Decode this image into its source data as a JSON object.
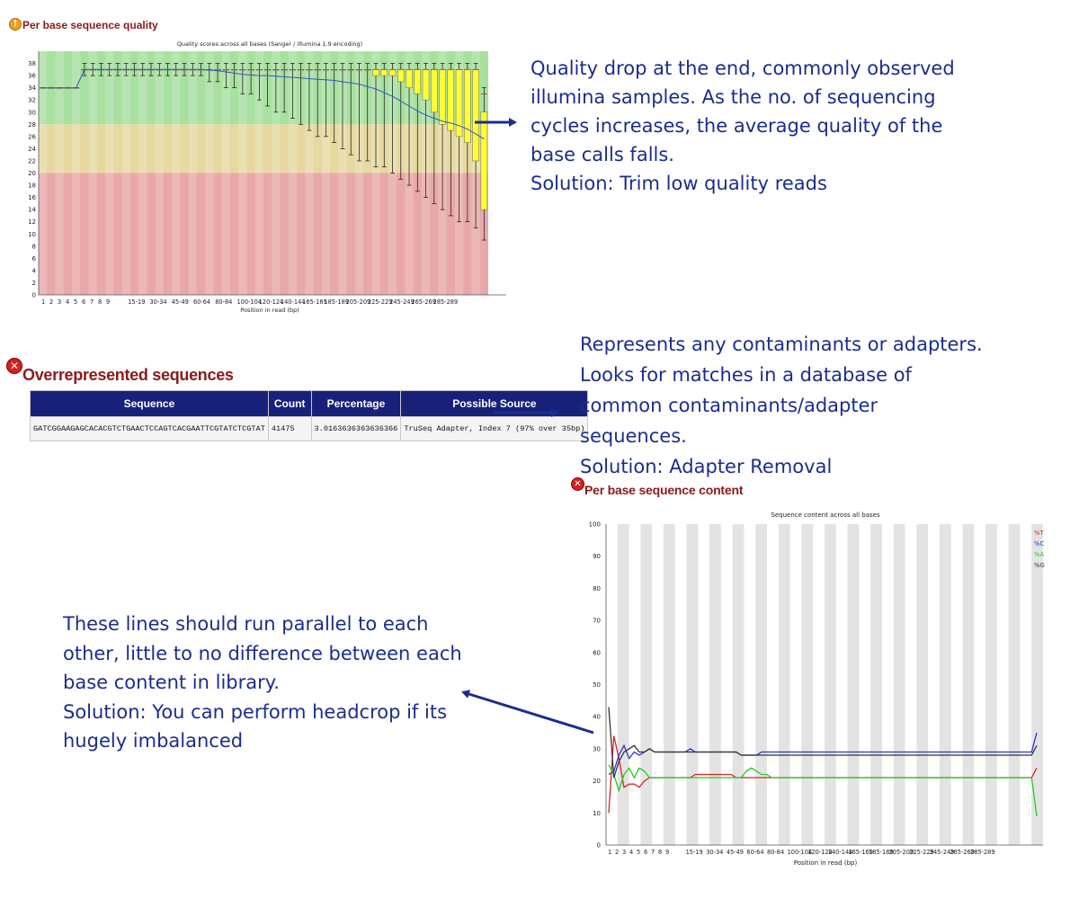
{
  "sections": {
    "quality": {
      "title": "Per base sequence quality",
      "icon": "warning-icon"
    },
    "overrep": {
      "title": "Overrepresented sequences",
      "icon": "fail-icon"
    },
    "content": {
      "title": "Per base sequence content",
      "icon": "fail-icon"
    }
  },
  "notes": {
    "quality": [
      "Quality drop at the end, commonly observed",
      "illumina samples. As the no. of sequencing",
      "cycles increases, the average quality of the",
      "base calls falls.",
      "Solution: Trim low quality reads"
    ],
    "overrep": [
      "Represents any contaminants or adapters.",
      "Looks for matches in a database of",
      "common contaminants/adapter",
      "sequences.",
      "Solution: Adapter Removal"
    ],
    "content": [
      "These lines should run parallel to each",
      "other, little to no difference between each",
      "base content in library.",
      "Solution: You can perform headcrop if its",
      "hugely imbalanced"
    ]
  },
  "overrep_table": {
    "headers": [
      "Sequence",
      "Count",
      "Percentage",
      "Possible Source"
    ],
    "rows": [
      [
        "GATCGGAAGAGCACACGTCTGAACTCCAGTCACGAATTCGTATCTCGTAT",
        "41475",
        "3.0163636363636366",
        "TruSeq Adapter, Index 7 (97% over 35bp)"
      ]
    ]
  },
  "colors": {
    "annotation": "#1a2d8f",
    "good": "#a8e0a0",
    "warn": "#e6d8a0",
    "bad": "#e8a8a8",
    "box": "#ffff33",
    "mean": "#3355cc",
    "header": "#17217a"
  },
  "chart_data": [
    {
      "type": "box",
      "title": "Quality scores across all bases (Sanger / Illumina 1.9 encoding)",
      "xlabel": "Position in read (bp)",
      "ylabel": "",
      "ylim": [
        0,
        40
      ],
      "yticks": [
        0,
        2,
        4,
        6,
        8,
        10,
        12,
        14,
        16,
        18,
        20,
        22,
        24,
        26,
        28,
        30,
        32,
        34,
        36,
        38
      ],
      "x_tick_labels": [
        "1",
        "2",
        "3",
        "4",
        "5",
        "6",
        "7",
        "8",
        "9",
        "15-19",
        "30-34",
        "45-49",
        "60-64",
        "80-84",
        "100-104",
        "120-124",
        "140-144",
        "165-169",
        "185-189",
        "205-209",
        "225-229",
        "245-249",
        "265-269",
        "285-289"
      ],
      "zones": [
        {
          "from": 28,
          "to": 40,
          "label": "good"
        },
        {
          "from": 20,
          "to": 28,
          "label": "warn"
        },
        {
          "from": 0,
          "to": 20,
          "label": "bad"
        }
      ],
      "mean": [
        34,
        34,
        34,
        34,
        34,
        37,
        37,
        37,
        37,
        37,
        37,
        37,
        37,
        37,
        37,
        37,
        37,
        37,
        37,
        37,
        36.9,
        36.8,
        36.6,
        36.4,
        36.2,
        36.1,
        36,
        36,
        35.9,
        35.8,
        35.7,
        35.6,
        35.5,
        35.4,
        35.3,
        35.2,
        35,
        34.8,
        34.6,
        34.2,
        33.8,
        33.2,
        32.6,
        31.8,
        31,
        30.2,
        29.5,
        29,
        28.5,
        28.2,
        27.8,
        27.2,
        26.4,
        25.6
      ],
      "median": [
        34,
        34,
        34,
        34,
        34,
        37,
        37,
        37,
        37,
        37,
        37,
        37,
        37,
        37,
        37,
        37,
        37,
        37,
        37,
        37,
        37,
        37,
        37,
        37,
        37,
        37,
        37,
        37,
        37,
        37,
        37,
        37,
        37,
        37,
        37,
        37,
        37,
        37,
        37,
        37,
        37,
        37,
        37,
        37,
        37,
        37,
        37,
        37,
        37,
        37,
        37,
        37,
        37,
        33
      ],
      "q1": [
        34,
        34,
        34,
        34,
        34,
        37,
        37,
        37,
        37,
        37,
        37,
        37,
        37,
        37,
        37,
        37,
        37,
        37,
        37,
        37,
        37,
        37,
        37,
        37,
        37,
        37,
        37,
        37,
        37,
        37,
        37,
        37,
        37,
        37,
        37,
        37,
        37,
        37,
        37,
        37,
        36,
        36,
        36,
        35,
        34,
        33,
        32,
        30,
        28,
        27,
        26,
        25,
        22,
        14
      ],
      "q3": [
        34,
        34,
        34,
        34,
        34,
        37,
        37,
        37,
        37,
        37,
        37,
        37,
        37,
        37,
        37,
        37,
        37,
        37,
        37,
        37,
        37,
        37,
        37,
        37,
        37,
        37,
        37,
        37,
        37,
        37,
        37,
        37,
        37,
        37,
        37,
        37,
        37,
        37,
        37,
        37,
        37,
        37,
        37,
        37,
        37,
        37,
        37,
        37,
        37,
        37,
        37,
        37,
        37,
        30
      ],
      "whisker_low": [
        34,
        34,
        34,
        34,
        34,
        36,
        36,
        36,
        36,
        36,
        36,
        36,
        36,
        36,
        36,
        36,
        36,
        36,
        36,
        36,
        35,
        35,
        34,
        34,
        33,
        33,
        32,
        31,
        30,
        30,
        29,
        28,
        27,
        26,
        26,
        25,
        24,
        23,
        22,
        22,
        21,
        21,
        20,
        19,
        18,
        17,
        16,
        15,
        14,
        13,
        12,
        12,
        11,
        9
      ],
      "whisker_high": [
        34,
        34,
        34,
        34,
        34,
        38,
        38,
        38,
        38,
        38,
        38,
        38,
        38,
        38,
        38,
        38,
        38,
        38,
        38,
        38,
        38,
        38,
        38,
        38,
        38,
        38,
        38,
        38,
        38,
        38,
        38,
        38,
        38,
        38,
        38,
        38,
        38,
        38,
        38,
        38,
        38,
        38,
        38,
        38,
        38,
        38,
        38,
        38,
        38,
        38,
        38,
        38,
        38,
        34
      ]
    },
    {
      "type": "line",
      "title": "Sequence content across all bases",
      "xlabel": "Position in read (bp)",
      "ylabel": "",
      "ylim": [
        0,
        100
      ],
      "yticks": [
        0,
        10,
        20,
        30,
        40,
        50,
        60,
        70,
        80,
        90,
        100
      ],
      "x_tick_labels": [
        "1",
        "2",
        "3",
        "4",
        "5",
        "6",
        "7",
        "8",
        "9",
        "15-19",
        "30-34",
        "45-49",
        "60-64",
        "80-84",
        "100-104",
        "120-124",
        "140-144",
        "165-169",
        "185-189",
        "205-209",
        "225-229",
        "245-249",
        "265-269",
        "285-289"
      ],
      "legend": "top-right",
      "series": [
        {
          "name": "%T",
          "color": "#dd2222",
          "values": [
            10,
            34,
            27,
            18,
            19,
            19,
            18,
            20,
            21,
            21,
            21,
            21,
            21,
            21,
            21,
            21,
            21,
            22,
            22,
            22,
            22,
            22,
            22,
            22,
            22,
            21,
            21,
            21,
            21,
            21,
            21,
            21,
            21,
            21,
            21,
            21,
            21,
            21,
            21,
            21,
            21,
            21,
            21,
            21,
            21,
            21,
            21,
            21,
            21,
            21,
            21,
            21,
            21,
            21,
            21,
            21,
            21,
            21,
            21,
            21,
            21,
            21,
            21,
            21,
            21,
            21,
            21,
            21,
            21,
            21,
            21,
            21,
            21,
            21,
            21,
            21,
            21,
            21,
            21,
            21,
            21,
            21,
            21,
            21,
            24
          ]
        },
        {
          "name": "%C",
          "color": "#2233dd",
          "values": [
            22,
            23,
            28,
            31,
            27,
            29,
            28,
            29,
            30,
            29,
            29,
            29,
            29,
            29,
            29,
            29,
            30,
            29,
            29,
            29,
            29,
            29,
            29,
            29,
            29,
            29,
            28,
            28,
            28,
            28,
            29,
            29,
            29,
            29,
            29,
            29,
            29,
            29,
            29,
            29,
            29,
            29,
            29,
            29,
            29,
            29,
            29,
            29,
            29,
            29,
            29,
            29,
            29,
            29,
            29,
            29,
            29,
            29,
            29,
            29,
            29,
            29,
            29,
            29,
            29,
            29,
            29,
            29,
            29,
            29,
            29,
            29,
            29,
            29,
            29,
            29,
            29,
            29,
            29,
            29,
            29,
            29,
            29,
            29,
            35
          ]
        },
        {
          "name": "%A",
          "color": "#22cc22",
          "values": [
            25,
            22,
            17,
            22,
            24,
            21,
            24,
            23,
            21,
            21,
            21,
            21,
            21,
            21,
            21,
            21,
            21,
            21,
            21,
            21,
            21,
            21,
            21,
            21,
            21,
            21,
            21,
            23,
            24,
            23,
            22,
            22,
            21,
            21,
            21,
            21,
            21,
            21,
            21,
            21,
            21,
            21,
            21,
            21,
            21,
            21,
            21,
            21,
            21,
            21,
            21,
            21,
            21,
            21,
            21,
            21,
            21,
            21,
            21,
            21,
            21,
            21,
            21,
            21,
            21,
            21,
            21,
            21,
            21,
            21,
            21,
            21,
            21,
            21,
            21,
            21,
            21,
            21,
            21,
            21,
            21,
            21,
            21,
            21,
            9
          ]
        },
        {
          "name": "%G",
          "color": "#333333",
          "values": [
            43,
            21,
            26,
            29,
            30,
            31,
            29,
            29,
            30,
            29,
            29,
            29,
            29,
            29,
            29,
            29,
            29,
            29,
            29,
            29,
            29,
            29,
            29,
            29,
            29,
            29,
            28,
            28,
            28,
            28,
            28,
            28,
            28,
            28,
            28,
            28,
            28,
            28,
            28,
            28,
            28,
            28,
            28,
            28,
            28,
            28,
            28,
            28,
            28,
            28,
            28,
            28,
            28,
            28,
            28,
            28,
            28,
            28,
            28,
            28,
            28,
            28,
            28,
            28,
            28,
            28,
            28,
            28,
            28,
            28,
            28,
            28,
            28,
            28,
            28,
            28,
            28,
            28,
            28,
            28,
            28,
            28,
            28,
            28,
            31
          ]
        }
      ]
    }
  ]
}
